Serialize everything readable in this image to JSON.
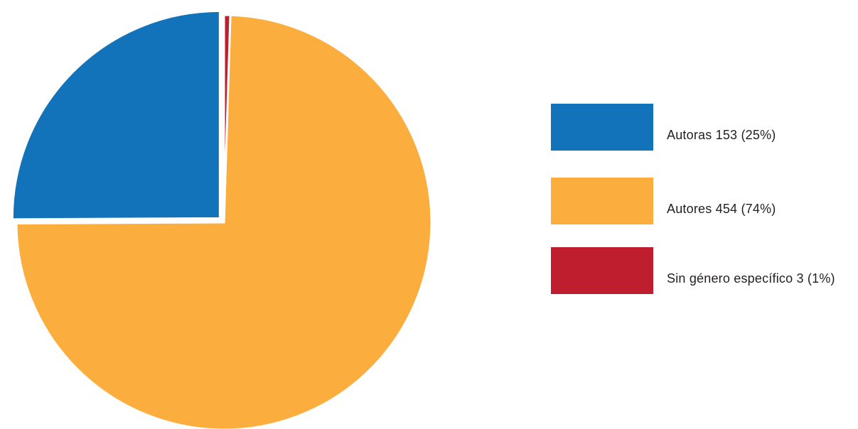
{
  "chart_data": {
    "type": "pie",
    "title": "",
    "legend_position": "right",
    "slices": [
      {
        "label": "Autoras 153 (25%)",
        "value": 153,
        "percent": 25,
        "color": "#1273bb"
      },
      {
        "label": "Autores 454 (74%)",
        "value": 454,
        "percent": 74,
        "color": "#fbae3d"
      },
      {
        "label": "Sin género específico 3 (1%)",
        "value": 3,
        "percent": 1,
        "color": "#be1e2d"
      }
    ],
    "exploded_slice_index": 0
  }
}
